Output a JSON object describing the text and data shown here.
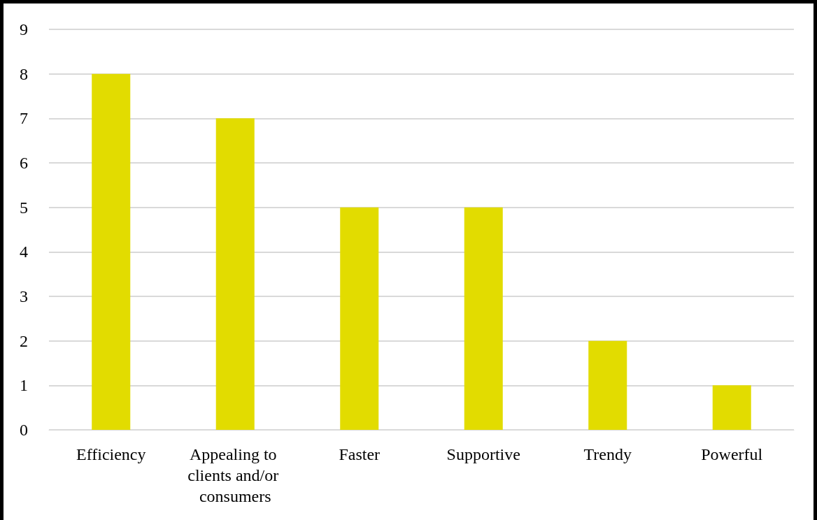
{
  "chart_data": {
    "type": "bar",
    "categories": [
      "Efficiency",
      "Appealing to clients and/or consumers",
      "Faster",
      "Supportive",
      "Trendy",
      "Powerful"
    ],
    "values": [
      8,
      7,
      5,
      5,
      2,
      1
    ],
    "color": "#e2dc00",
    "ylim": [
      0,
      9
    ],
    "yticks": [
      0,
      1,
      2,
      3,
      4,
      5,
      6,
      7,
      8,
      9
    ],
    "grid": "y"
  }
}
